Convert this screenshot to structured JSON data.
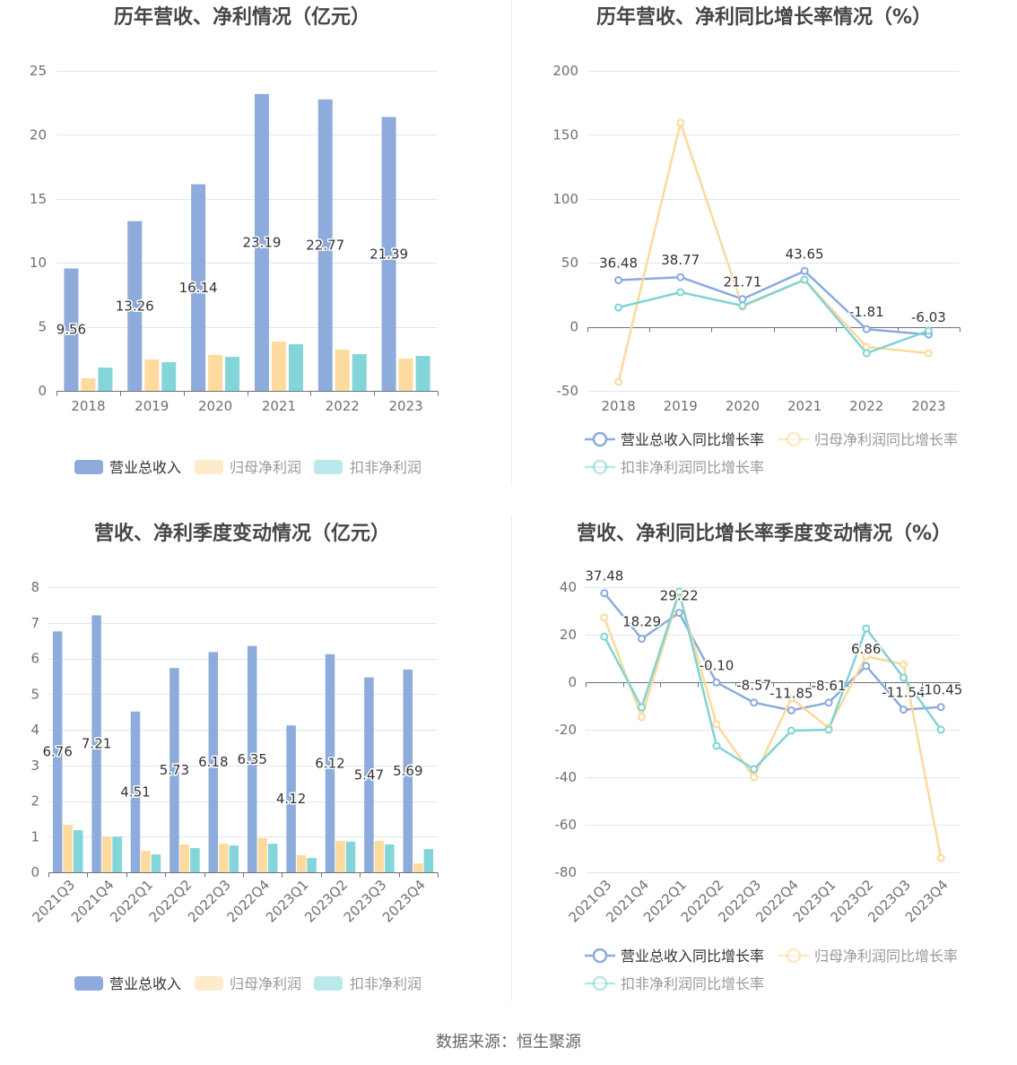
{
  "footer": {
    "source": "数据来源：恒生聚源"
  },
  "chart_data": [
    {
      "type": "bar",
      "title": "历年营收、净利情况（亿元）",
      "categories": [
        "2018",
        "2019",
        "2020",
        "2021",
        "2022",
        "2023"
      ],
      "series": [
        {
          "name": "营业总收入",
          "color": "#8EACDB",
          "show_labels": true,
          "values": [
            9.56,
            13.26,
            16.14,
            23.19,
            22.77,
            21.39
          ]
        },
        {
          "name": "归母净利润",
          "color": "#FDDB9F",
          "show_labels": false,
          "values": [
            0.98,
            2.45,
            2.8,
            3.85,
            3.22,
            2.52
          ]
        },
        {
          "name": "扣非净利润",
          "color": "#84D5D9",
          "show_labels": false,
          "values": [
            1.82,
            2.24,
            2.66,
            3.64,
            2.87,
            2.73
          ]
        }
      ],
      "xlabel": "",
      "ylabel": "",
      "ylim": [
        0,
        25
      ],
      "yticks": [
        0,
        5,
        10,
        15,
        20,
        25
      ],
      "grid": true,
      "legend": "bottom"
    },
    {
      "type": "line",
      "title": "历年营收、净利同比增长率情况（%）",
      "categories": [
        "2018",
        "2019",
        "2020",
        "2021",
        "2022",
        "2023"
      ],
      "series": [
        {
          "name": "营业总收入同比增长率",
          "color": "#8DAADB",
          "show_labels": true,
          "values": [
            36.48,
            38.77,
            21.71,
            43.65,
            -1.81,
            -6.03
          ]
        },
        {
          "name": "归母净利润同比增长率",
          "color": "#FDD99B",
          "show_labels": false,
          "values": [
            -43.0,
            159.4,
            15.8,
            36.8,
            -15.7,
            -20.6
          ]
        },
        {
          "name": "扣非净利润同比增长率",
          "color": "#80D3D6",
          "show_labels": false,
          "values": [
            15.1,
            27.0,
            16.5,
            36.8,
            -20.6,
            -3.0
          ]
        }
      ],
      "xlabel": "",
      "ylabel": "",
      "ylim": [
        -50,
        200
      ],
      "yticks": [
        -50,
        0,
        50,
        100,
        150,
        200
      ],
      "grid": true,
      "legend": "bottom"
    },
    {
      "type": "bar",
      "title": "营收、净利季度变动情况（亿元）",
      "categories": [
        "2021Q3",
        "2021Q4",
        "2022Q1",
        "2022Q2",
        "2022Q3",
        "2022Q4",
        "2023Q1",
        "2023Q2",
        "2023Q3",
        "2023Q4"
      ],
      "series": [
        {
          "name": "营业总收入",
          "color": "#8EACDB",
          "show_labels": true,
          "values": [
            6.76,
            7.21,
            4.51,
            5.73,
            6.18,
            6.35,
            4.12,
            6.12,
            5.47,
            5.69
          ]
        },
        {
          "name": "归母净利润",
          "color": "#FDDB9F",
          "show_labels": false,
          "values": [
            1.33,
            1.0,
            0.6,
            0.78,
            0.8,
            0.96,
            0.48,
            0.88,
            0.88,
            0.25
          ]
        },
        {
          "name": "扣非净利润",
          "color": "#84D5D9",
          "show_labels": false,
          "values": [
            1.18,
            1.0,
            0.5,
            0.68,
            0.75,
            0.8,
            0.4,
            0.86,
            0.78,
            0.65
          ]
        }
      ],
      "xlabel": "",
      "ylabel": "",
      "ylim": [
        0,
        8
      ],
      "yticks": [
        0,
        1,
        2,
        3,
        4,
        5,
        6,
        7,
        8
      ],
      "grid": true,
      "legend": "bottom"
    },
    {
      "type": "line",
      "title": "营收、净利同比增长率季度变动情况（%）",
      "categories": [
        "2021Q3",
        "2021Q4",
        "2022Q1",
        "2022Q2",
        "2022Q3",
        "2022Q4",
        "2023Q1",
        "2023Q2",
        "2023Q3",
        "2023Q4"
      ],
      "series": [
        {
          "name": "营业总收入同比增长率",
          "color": "#8DAADB",
          "show_labels": true,
          "values": [
            37.48,
            18.29,
            29.22,
            -0.1,
            -8.57,
            -11.85,
            -8.61,
            6.86,
            -11.54,
            -10.45
          ]
        },
        {
          "name": "归母净利润同比增长率",
          "color": "#FDD99B",
          "show_labels": false,
          "values": [
            27.2,
            -14.7,
            37.4,
            -17.7,
            -40.0,
            -6.8,
            -19.2,
            10.9,
            7.5,
            -74.0
          ]
        },
        {
          "name": "扣非净利润同比增长率",
          "color": "#80D3D6",
          "show_labels": false,
          "values": [
            19.2,
            -10.6,
            38.1,
            -26.8,
            -36.6,
            -20.4,
            -20.0,
            22.6,
            1.9,
            -20.0
          ]
        }
      ],
      "xlabel": "",
      "ylabel": "",
      "ylim": [
        -80,
        40
      ],
      "yticks": [
        -80,
        -60,
        -40,
        -20,
        0,
        20,
        40
      ],
      "grid": true,
      "legend": "bottom"
    }
  ]
}
